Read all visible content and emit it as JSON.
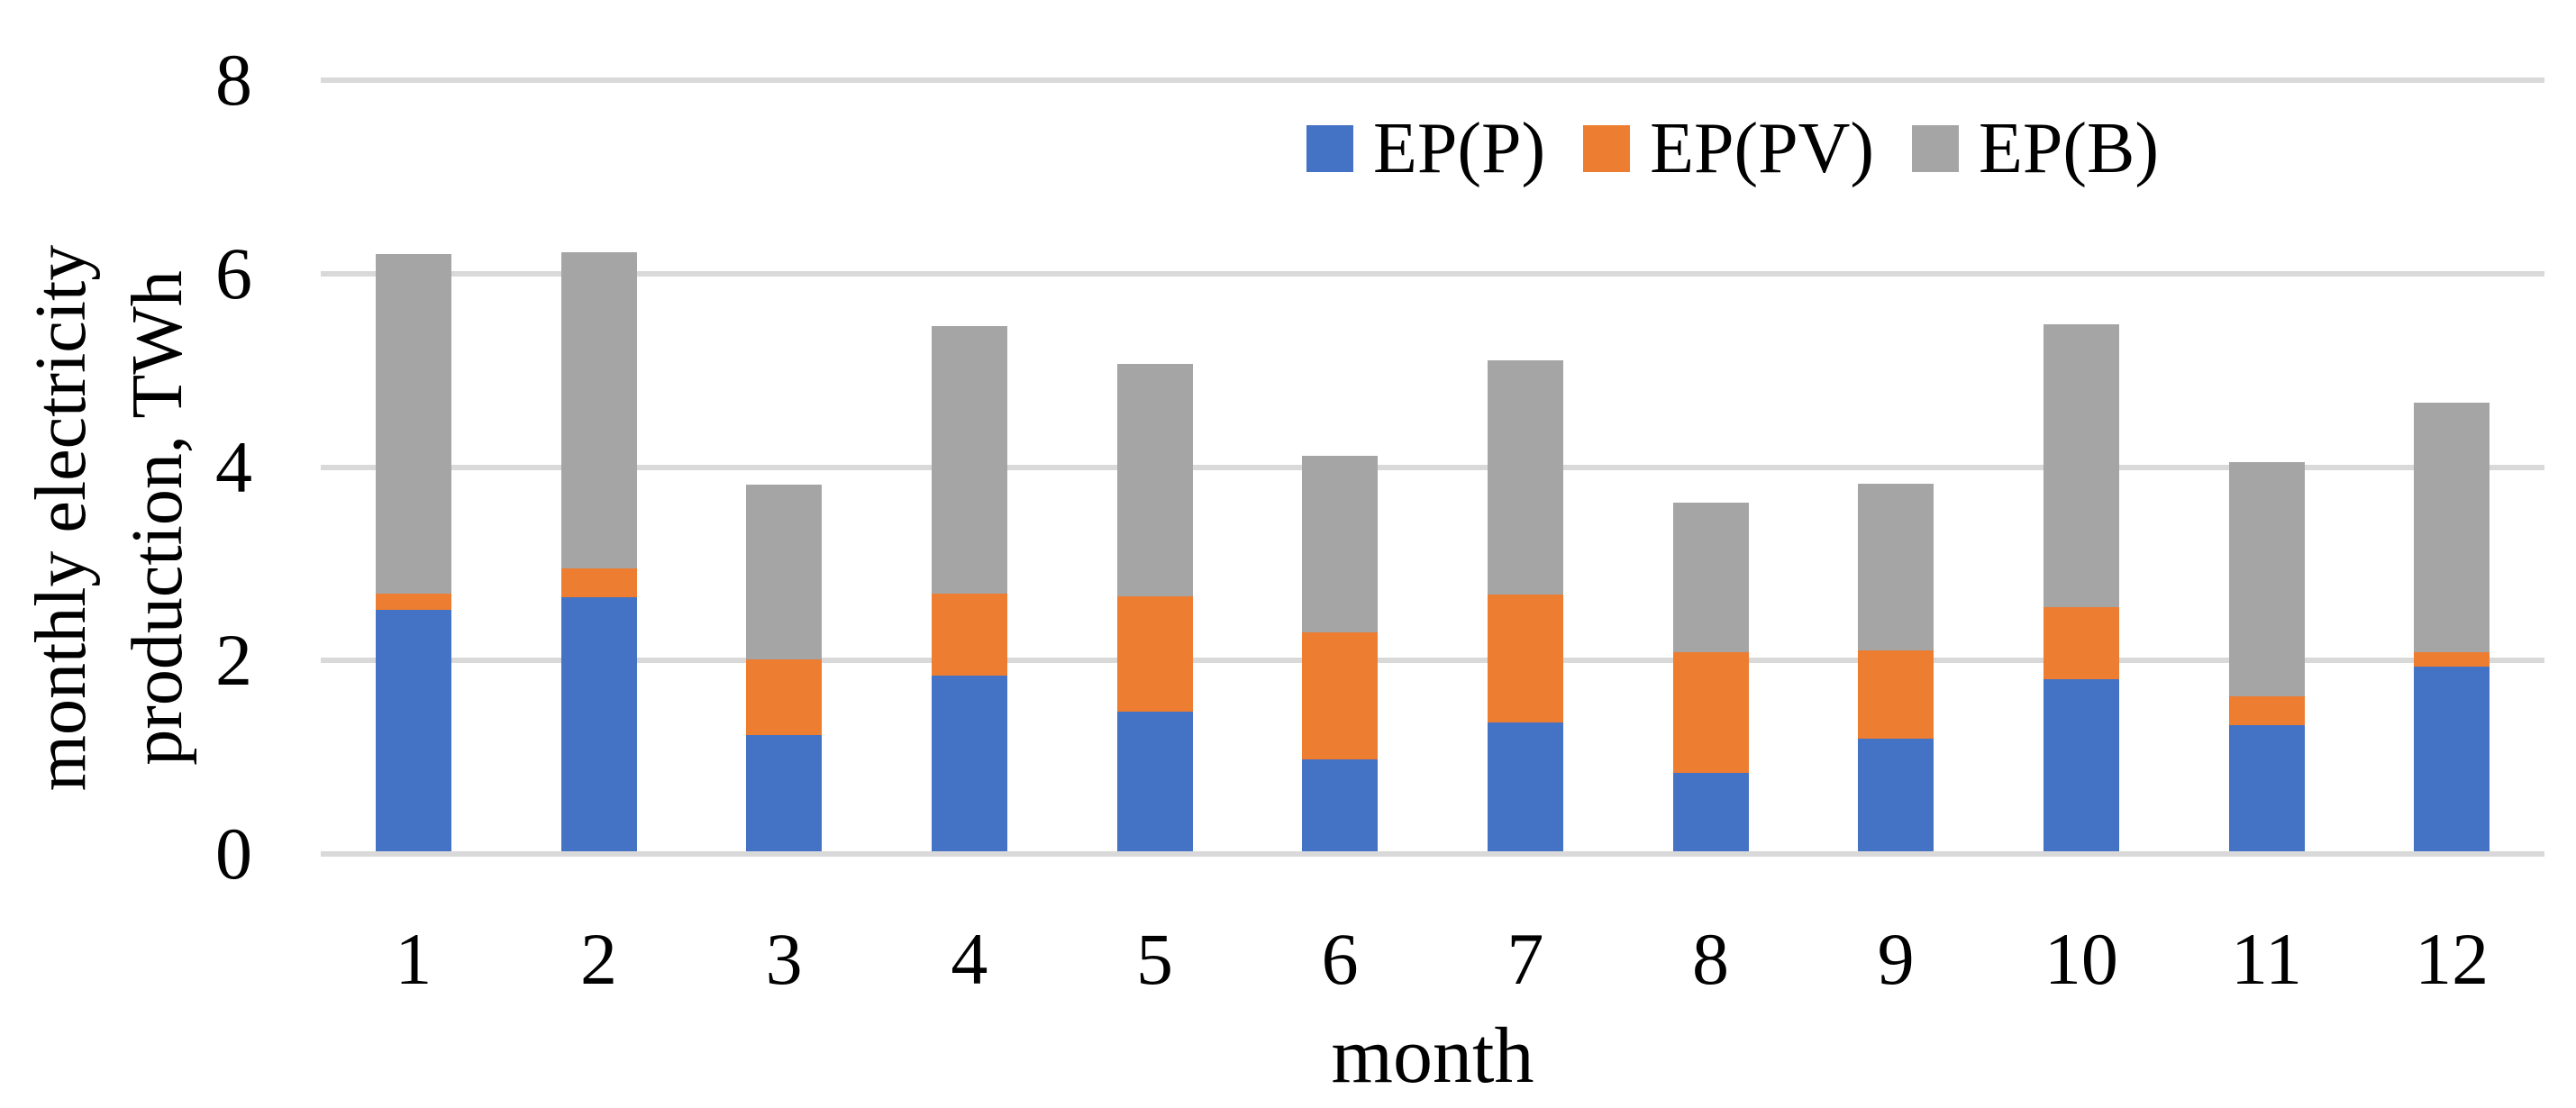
{
  "chart_data": {
    "type": "bar",
    "stacked": true,
    "categories": [
      "1",
      "2",
      "3",
      "4",
      "5",
      "6",
      "7",
      "8",
      "9",
      "10",
      "11",
      "12"
    ],
    "series": [
      {
        "name": "EP(P)",
        "color": "#4472C4",
        "values": [
          2.5,
          2.63,
          1.2,
          1.82,
          1.44,
          0.95,
          1.33,
          0.81,
          1.16,
          1.78,
          1.3,
          1.91
        ]
      },
      {
        "name": "EP(PV)",
        "color": "#ED7D31",
        "values": [
          0.16,
          0.29,
          0.78,
          0.84,
          1.2,
          1.31,
          1.32,
          1.25,
          0.92,
          0.74,
          0.3,
          0.15
        ]
      },
      {
        "name": "EP(B)",
        "color": "#A5A5A5",
        "values": [
          3.51,
          3.27,
          1.81,
          2.77,
          2.4,
          1.83,
          2.43,
          1.54,
          1.72,
          2.93,
          2.42,
          2.58
        ]
      }
    ],
    "totals": [
      6.17,
      6.19,
      3.79,
      5.43,
      5.04,
      4.09,
      5.08,
      3.6,
      3.8,
      5.45,
      4.02,
      4.64
    ],
    "xlabel": "month",
    "ylabel": "monthly electricity production, TWh",
    "ylabel_lines": [
      "monthly electricity",
      "production, TWh"
    ],
    "ylim": [
      0,
      8
    ],
    "yticks": [
      0,
      2,
      4,
      6,
      8
    ],
    "grid": "horizontal",
    "gridline_color": "#D9D9D9",
    "background": "#FFFFFF",
    "text_color": "#000000",
    "legend_position": "top-inside"
  }
}
